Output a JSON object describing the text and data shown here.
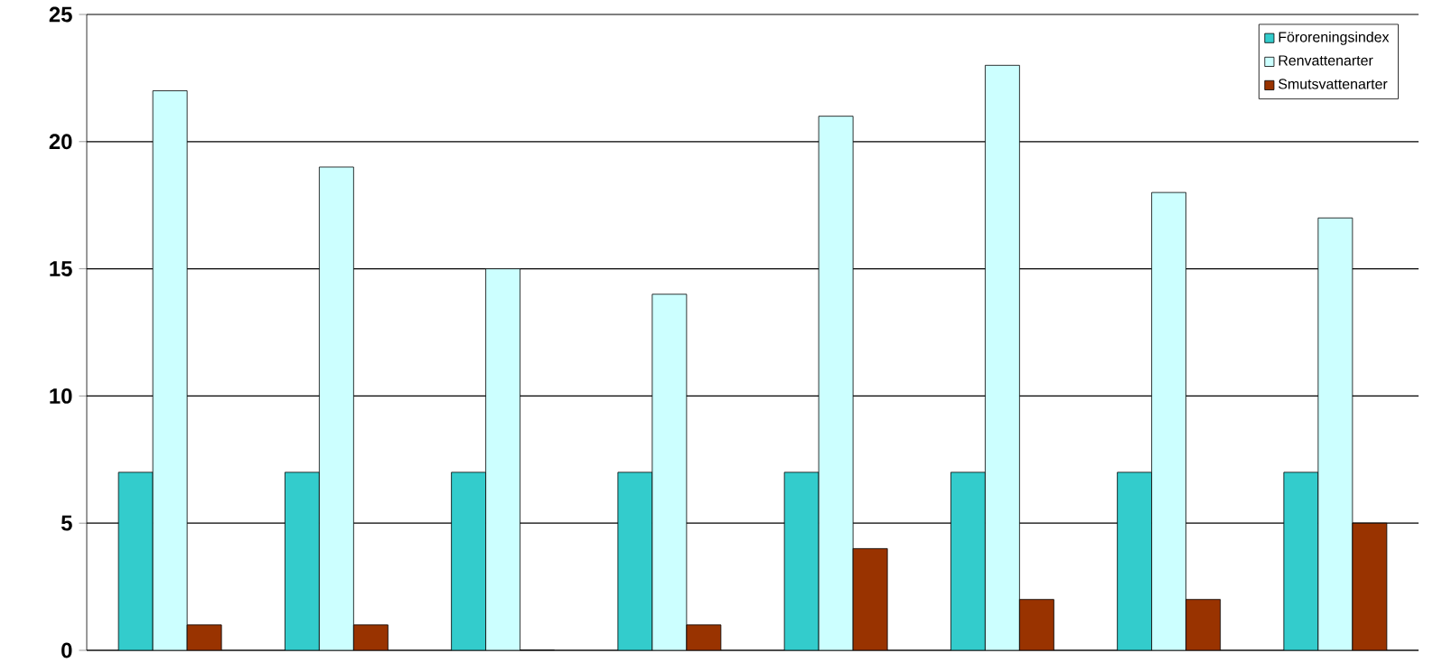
{
  "chart_data": {
    "type": "bar",
    "categories": [
      null,
      null,
      null,
      null,
      null,
      null,
      null,
      null
    ],
    "series": [
      {
        "name": "Föroreningsindex",
        "color": "#33cccc",
        "values": [
          7,
          7,
          7,
          7,
          7,
          7,
          7,
          7
        ]
      },
      {
        "name": "Renvattenarter",
        "color": "#ccffff",
        "values": [
          22,
          19,
          15,
          14,
          21,
          23,
          18,
          17
        ]
      },
      {
        "name": "Smutsvattenarter",
        "color": "#993300",
        "values": [
          1,
          1,
          0,
          1,
          4,
          2,
          2,
          5
        ]
      }
    ],
    "ylim": [
      0,
      25
    ],
    "yticks": [
      0,
      5,
      10,
      15,
      20,
      25
    ],
    "grid": "y",
    "legend": "top right"
  }
}
